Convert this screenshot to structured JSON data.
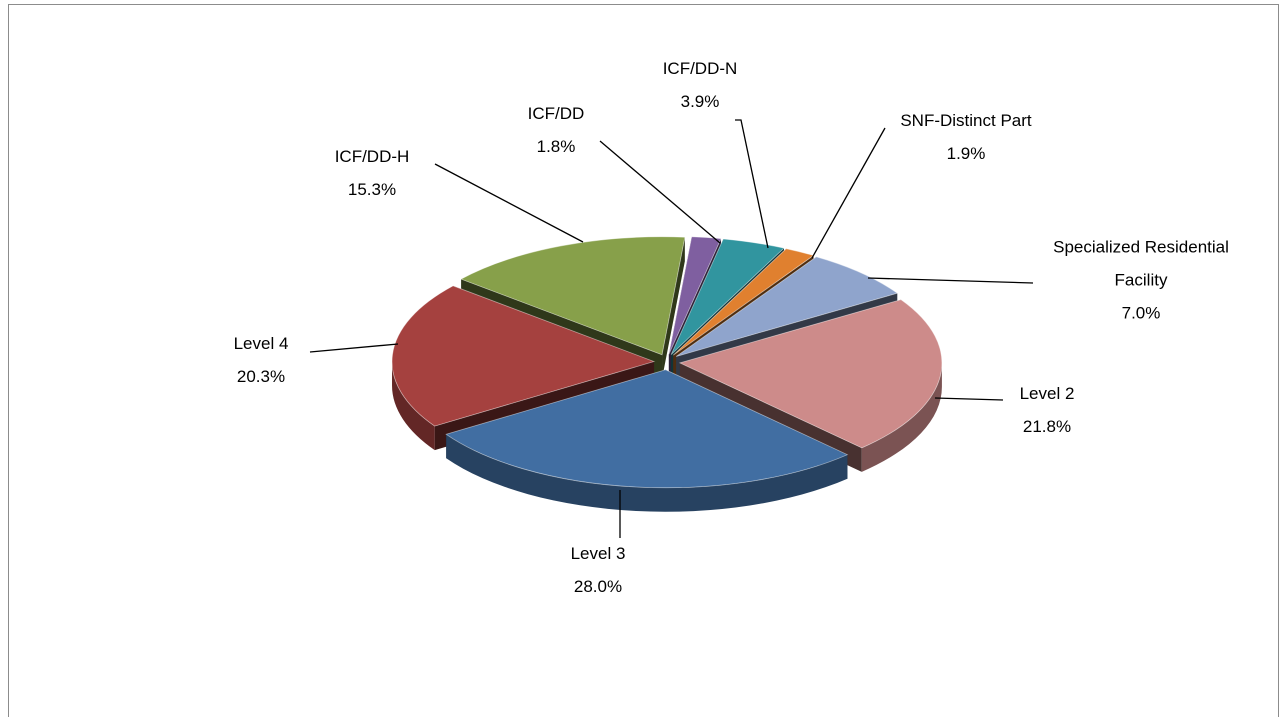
{
  "chart_data": {
    "type": "pie",
    "categories": [
      "ICF/DD",
      "ICF/DD-N",
      "SNF-Distinct Part",
      "Specialized Residential Facility",
      "Level 2",
      "Level 3",
      "Level 4",
      "ICF/DD-H"
    ],
    "values": [
      1.8,
      3.9,
      1.9,
      7.0,
      21.8,
      28.0,
      20.3,
      15.3
    ],
    "value_labels": [
      "1.8%",
      "3.9%",
      "1.9%",
      "7.0%",
      "21.8%",
      "28.0%",
      "20.3%",
      "15.3%"
    ],
    "colors": [
      "#7f5fa0",
      "#31959f",
      "#e0802f",
      "#8fa4cc",
      "#cd8b8a",
      "#416ea2",
      "#a5413f",
      "#87a04a"
    ]
  }
}
